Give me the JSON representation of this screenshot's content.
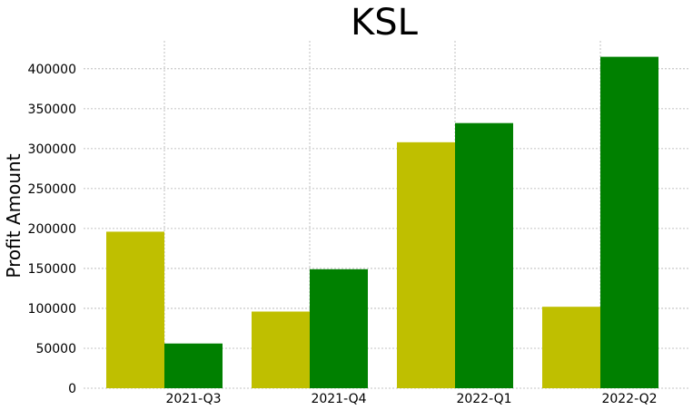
{
  "chart_data": {
    "type": "bar",
    "title": "KSL",
    "xlabel": "",
    "ylabel": "Profit Amount",
    "categories": [
      "2021-Q3",
      "2021-Q4",
      "2022-Q1",
      "2022-Q2"
    ],
    "series": [
      {
        "color": "#bfbf00",
        "values": [
          196000,
          96000,
          308000,
          102000
        ]
      },
      {
        "color": "#008000",
        "values": [
          56000,
          149000,
          332000,
          415000
        ]
      }
    ],
    "ylim": [
      0,
      435000
    ],
    "yticks": [
      0,
      50000,
      100000,
      150000,
      200000,
      250000,
      300000,
      350000,
      400000
    ],
    "grid": true
  }
}
